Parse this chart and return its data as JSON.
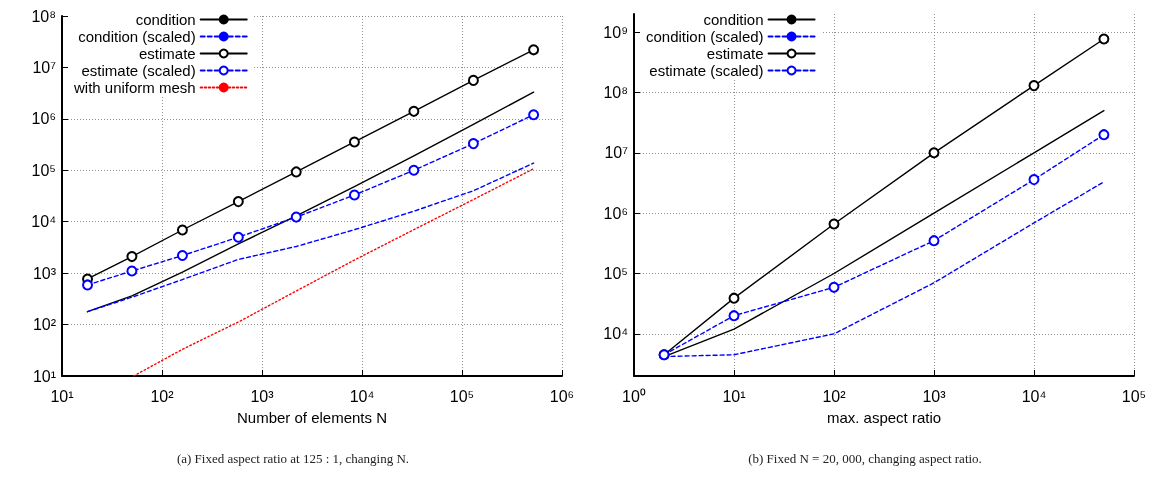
{
  "chart_data": [
    {
      "type": "line",
      "xlabel": "Number of elements N",
      "annotations": [
        "(a) Fixed aspect ratio at 125 : 1, changing N."
      ],
      "log": "xy",
      "grid": true,
      "legend": "top",
      "xlim": [
        10,
        1000000
      ],
      "ylim": [
        10,
        100000000
      ],
      "xticks": [
        {
          "value": 10,
          "label": "10¹"
        },
        {
          "value": 100,
          "label": "10²"
        },
        {
          "value": 1000,
          "label": "10³"
        },
        {
          "value": 10000,
          "label": "10⁴"
        },
        {
          "value": 100000,
          "label": "10⁵"
        },
        {
          "value": 1000000,
          "label": "10⁶"
        }
      ],
      "yticks": [
        {
          "value": 10,
          "label": "10¹"
        },
        {
          "value": 100,
          "label": "10²"
        },
        {
          "value": 1000,
          "label": "10³"
        },
        {
          "value": 10000,
          "label": "10⁴"
        },
        {
          "value": 100000,
          "label": "10⁵"
        },
        {
          "value": 1000000,
          "label": "10⁶"
        },
        {
          "value": 10000000,
          "label": "10⁷"
        },
        {
          "value": 100000000,
          "label": "10⁸"
        }
      ],
      "series": [
        {
          "name": "condition",
          "color": "#000000",
          "line_style": "solid",
          "marker": "none",
          "x": [
            18,
            50,
            160,
            580,
            2200,
            8400,
            33000,
            130000,
            520000
          ],
          "values": [
            178,
            360,
            1050,
            3700,
            13000,
            48000,
            190000,
            780000,
            3300000
          ]
        },
        {
          "name": "condition (scaled)",
          "color": "#0000ff",
          "line_style": "dashed",
          "marker": "none",
          "x": [
            18,
            50,
            160,
            580,
            2200,
            8400,
            33000,
            130000,
            520000
          ],
          "values": [
            178,
            340,
            750,
            1850,
            3300,
            7000,
            16000,
            40000,
            138000
          ]
        },
        {
          "name": "estimate",
          "color": "#000000",
          "line_style": "solid",
          "marker": "circle",
          "x": [
            18,
            50,
            160,
            580,
            2200,
            8400,
            33000,
            130000,
            520000
          ],
          "values": [
            770,
            2100,
            6900,
            24600,
            93000,
            355000,
            1400000,
            5600000,
            22000000
          ]
        },
        {
          "name": "estimate (scaled)",
          "color": "#0000ff",
          "line_style": "dashed",
          "marker": "circle",
          "x": [
            18,
            50,
            160,
            580,
            2200,
            8400,
            33000,
            130000,
            520000
          ],
          "values": [
            590,
            1100,
            2200,
            5000,
            12300,
            33000,
            100000,
            330000,
            1200000
          ]
        },
        {
          "name": "with uniform mesh",
          "color": "#ff0000",
          "line_style": "dotted",
          "marker": "none",
          "x": [
            52,
            160,
            580,
            2200,
            8400,
            33000,
            130000,
            520000
          ],
          "values": [
            10,
            33,
            112,
            450,
            1800,
            7000,
            27000,
            107000
          ]
        }
      ]
    },
    {
      "type": "line",
      "xlabel": "max. aspect ratio",
      "annotations": [
        "(b) Fixed N = 20, 000, changing aspect ratio."
      ],
      "log": "xy",
      "grid": true,
      "legend": "top",
      "xlim": [
        1,
        100000
      ],
      "ylim": [
        2000,
        2000000000
      ],
      "xticks": [
        {
          "value": 1,
          "label": "10⁰"
        },
        {
          "value": 10,
          "label": "10¹"
        },
        {
          "value": 100,
          "label": "10²"
        },
        {
          "value": 1000,
          "label": "10³"
        },
        {
          "value": 10000,
          "label": "10⁴"
        },
        {
          "value": 100000,
          "label": "10⁵"
        }
      ],
      "yticks": [
        {
          "value": 10000,
          "label": "10⁴"
        },
        {
          "value": 100000,
          "label": "10⁵"
        },
        {
          "value": 1000000,
          "label": "10⁶"
        },
        {
          "value": 10000000,
          "label": "10⁷"
        },
        {
          "value": 100000000,
          "label": "10⁸"
        },
        {
          "value": 1000000000,
          "label": "10⁹"
        }
      ],
      "series": [
        {
          "name": "condition",
          "color": "#000000",
          "line_style": "solid",
          "marker": "none",
          "x": [
            2,
            10,
            100,
            1000,
            10000,
            50000
          ],
          "values": [
            4200,
            12000,
            100000,
            1000000,
            10000000,
            50000000
          ]
        },
        {
          "name": "condition (scaled)",
          "color": "#0000ff",
          "line_style": "dashed",
          "marker": "none",
          "x": [
            2,
            10,
            100,
            1000,
            10000,
            50000
          ],
          "values": [
            4200,
            4500,
            10000,
            70000,
            690000,
            3300000
          ]
        },
        {
          "name": "estimate",
          "color": "#000000",
          "line_style": "solid",
          "marker": "circle",
          "x": [
            2,
            10,
            100,
            1000,
            10000,
            50000
          ],
          "values": [
            4500,
            39000,
            660000,
            10000000,
            130000000,
            770000000
          ]
        },
        {
          "name": "estimate (scaled)",
          "color": "#0000ff",
          "line_style": "dashed",
          "marker": "circle",
          "x": [
            2,
            10,
            100,
            1000,
            10000,
            50000
          ],
          "values": [
            4500,
            20000,
            59000,
            350000,
            3600000,
            20000000
          ]
        }
      ]
    }
  ]
}
